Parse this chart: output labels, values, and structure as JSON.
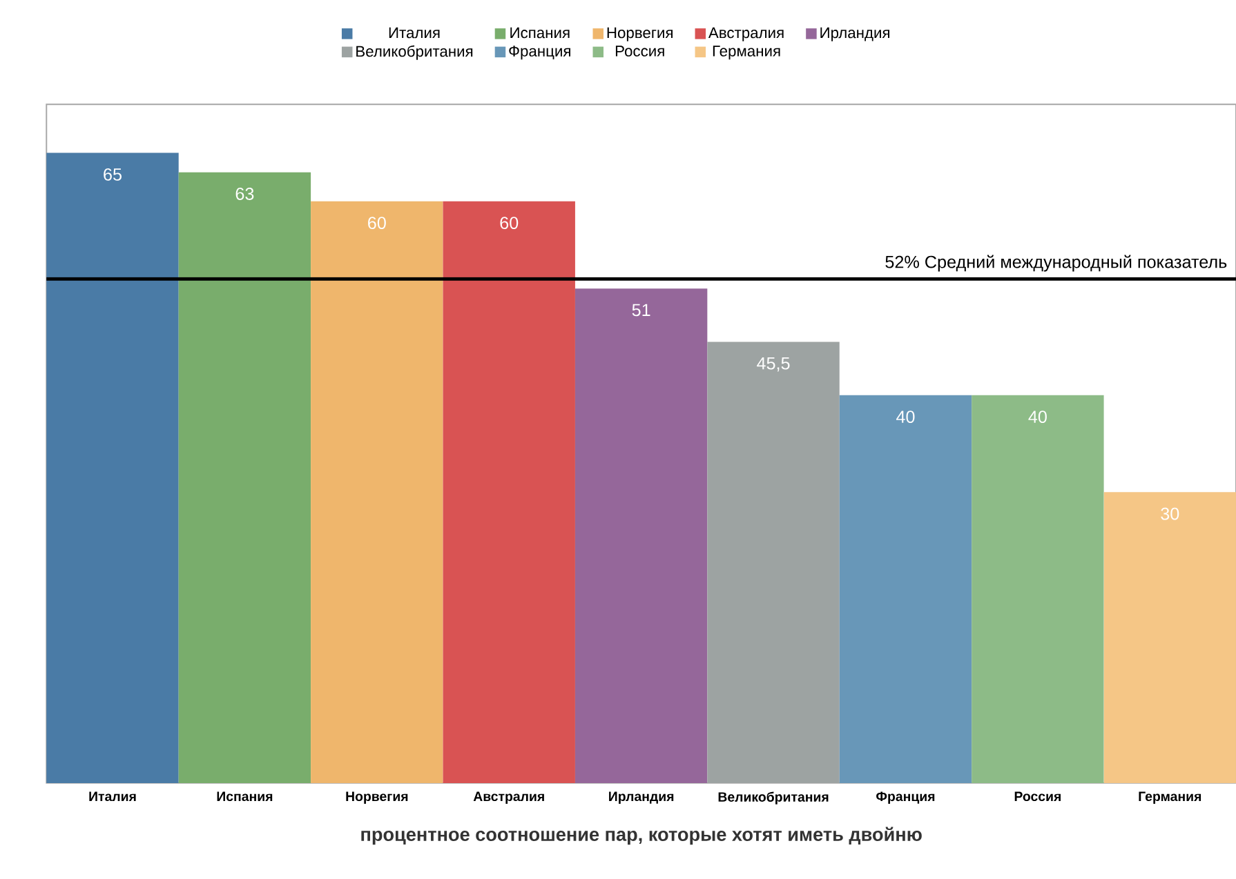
{
  "chart_data": {
    "type": "bar",
    "xlabel": "процентное соотношение пар, которые хотят иметь двойню",
    "categories": [
      "Италия",
      "Испания",
      "Норвегия",
      "Австралия",
      "Ирландия",
      "Великобритания",
      "Франция",
      "Россия",
      "Германия"
    ],
    "series": [
      {
        "name": "Италия",
        "color": "#4a7ba6",
        "values": [
          65,
          null,
          null,
          null,
          null,
          null,
          null,
          null,
          null
        ],
        "value_labels": [
          "65",
          null,
          null,
          null,
          null,
          null,
          null,
          null,
          null
        ]
      },
      {
        "name": "Испания",
        "color": "#79ad6c",
        "values": [
          null,
          63,
          null,
          null,
          null,
          null,
          null,
          null,
          null
        ],
        "value_labels": [
          null,
          "63",
          null,
          null,
          null,
          null,
          null,
          null,
          null
        ]
      },
      {
        "name": "Норвегия",
        "color": "#efb66c",
        "values": [
          null,
          null,
          60,
          null,
          null,
          null,
          null,
          null,
          null
        ],
        "value_labels": [
          null,
          null,
          "60",
          null,
          null,
          null,
          null,
          null,
          null
        ]
      },
      {
        "name": "Австралия",
        "color": "#d95353",
        "values": [
          null,
          null,
          null,
          60,
          null,
          null,
          null,
          null,
          null
        ],
        "value_labels": [
          null,
          null,
          null,
          "60",
          null,
          null,
          null,
          null,
          null
        ]
      },
      {
        "name": "Ирландия",
        "color": "#95679a",
        "values": [
          null,
          null,
          null,
          null,
          51,
          null,
          null,
          null,
          null
        ],
        "value_labels": [
          null,
          null,
          null,
          null,
          "51",
          null,
          null,
          null,
          null
        ]
      },
      {
        "name": "Великобритания",
        "color": "#9da3a2",
        "values": [
          null,
          null,
          null,
          null,
          null,
          45.5,
          null,
          null,
          null
        ],
        "value_labels": [
          null,
          null,
          null,
          null,
          null,
          "45,5",
          null,
          null,
          null
        ]
      },
      {
        "name": "Франция",
        "color": "#6897b8",
        "values": [
          null,
          null,
          null,
          null,
          null,
          null,
          40,
          null,
          null
        ],
        "value_labels": [
          null,
          null,
          null,
          null,
          null,
          null,
          "40",
          null,
          null
        ]
      },
      {
        "name": "Россия",
        "color": "#8dbb87",
        "values": [
          null,
          null,
          null,
          null,
          null,
          null,
          null,
          40,
          null
        ],
        "value_labels": [
          null,
          null,
          null,
          null,
          null,
          null,
          null,
          "40",
          null
        ]
      },
      {
        "name": "Германия",
        "color": "#f5c686",
        "values": [
          null,
          null,
          null,
          null,
          null,
          null,
          null,
          null,
          30
        ],
        "value_labels": [
          null,
          null,
          null,
          null,
          null,
          null,
          null,
          null,
          "30"
        ]
      }
    ],
    "ylim": [
      0,
      70
    ],
    "tick_labels": "x",
    "legend": "top",
    "ref_lines": [
      {
        "axis": "y",
        "value": 52,
        "label": "52% Средний международный показатель",
        "color": "#000000"
      }
    ]
  }
}
